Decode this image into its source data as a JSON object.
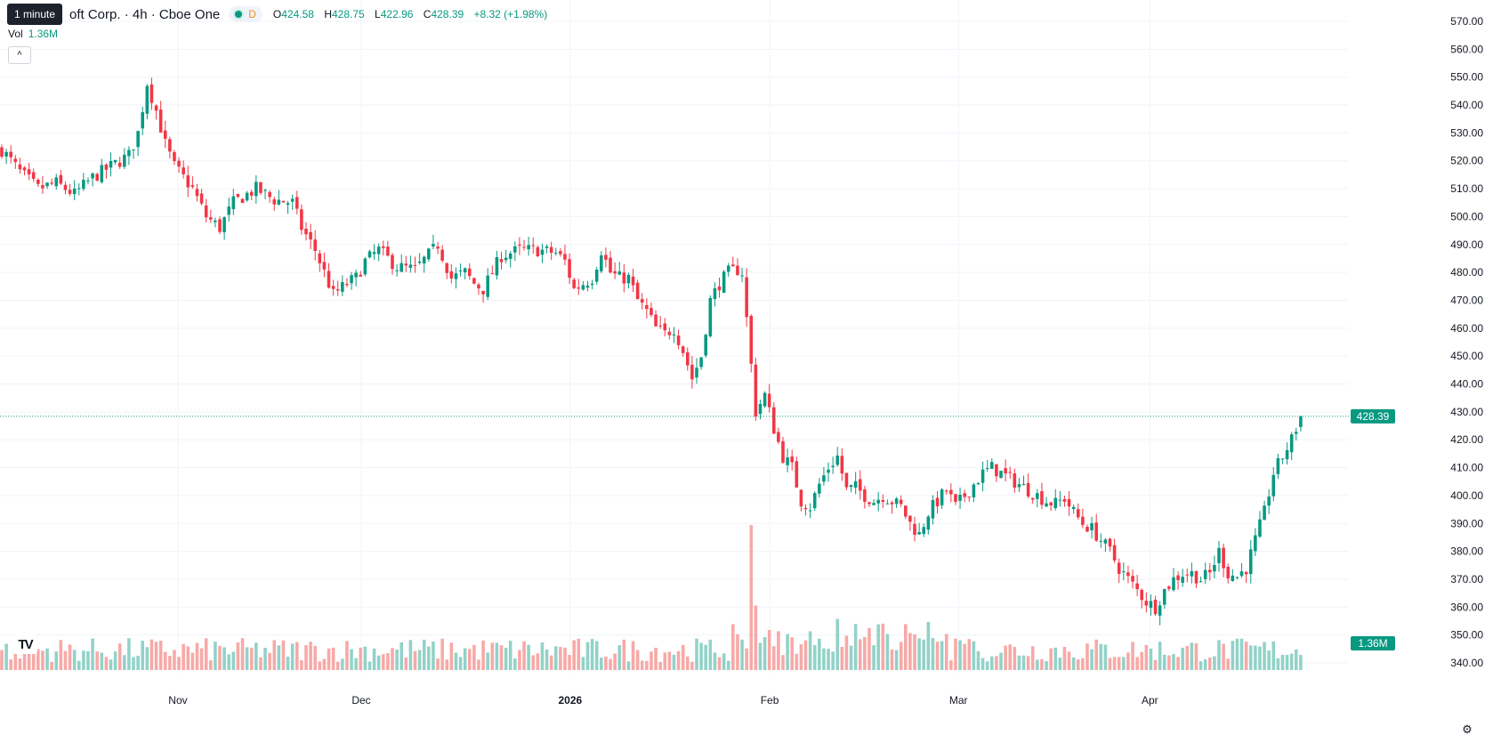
{
  "tooltip": "1 minute",
  "header": {
    "symbol": "oft Corp. · 4h · Cboe One",
    "interval_badge": "D",
    "ohlc": {
      "o_label": "O",
      "o": "424.58",
      "h_label": "H",
      "h": "428.75",
      "l_label": "L",
      "l": "422.96",
      "c_label": "C",
      "c": "428.39",
      "change": "+8.32 (+1.98%)"
    }
  },
  "volume": {
    "label": "Vol",
    "value": "1.36M"
  },
  "collapse_glyph": "^",
  "logo_text": "TV",
  "settings_icon": "⚙",
  "colors": {
    "up": "#089981",
    "down": "#f23645",
    "up_vol": "#92d2c8",
    "down_vol": "#f7a9a7",
    "grid": "#f0f3fa",
    "price_line": "#089981"
  },
  "chart_data": {
    "type": "candlestick",
    "title": "",
    "last_price": "428.39",
    "last_volume": "1.36M",
    "y_ticks": [
      "570.00",
      "560.00",
      "550.00",
      "540.00",
      "530.00",
      "520.00",
      "510.00",
      "500.00",
      "490.00",
      "480.00",
      "470.00",
      "460.00",
      "450.00",
      "440.00",
      "430.00",
      "420.00",
      "410.00",
      "400.00",
      "390.00",
      "380.00",
      "370.00",
      "360.00",
      "350.00",
      "340.00"
    ],
    "ylim": [
      336,
      574
    ],
    "x_labels": [
      {
        "label": "Nov",
        "pos": 0.132
      },
      {
        "label": "Dec",
        "pos": 0.268
      },
      {
        "label": "2026",
        "pos": 0.423
      },
      {
        "label": "Feb",
        "pos": 0.571
      },
      {
        "label": "Mar",
        "pos": 0.711
      },
      {
        "label": "Apr",
        "pos": 0.853
      }
    ],
    "anchors": [
      [
        0,
        524
      ],
      [
        4,
        516
      ],
      [
        8,
        510
      ],
      [
        12,
        512
      ],
      [
        16,
        508
      ],
      [
        20,
        514
      ],
      [
        24,
        518
      ],
      [
        28,
        522
      ],
      [
        30,
        530
      ],
      [
        32,
        548
      ],
      [
        34,
        538
      ],
      [
        36,
        526
      ],
      [
        38,
        518
      ],
      [
        42,
        510
      ],
      [
        45,
        500
      ],
      [
        48,
        496
      ],
      [
        51,
        505
      ],
      [
        56,
        510
      ],
      [
        60,
        506
      ],
      [
        64,
        505
      ],
      [
        66,
        496
      ],
      [
        69,
        488
      ],
      [
        73,
        472
      ],
      [
        76,
        476
      ],
      [
        78,
        478
      ],
      [
        80,
        484
      ],
      [
        83,
        488
      ],
      [
        87,
        482
      ],
      [
        91,
        481
      ],
      [
        95,
        488
      ],
      [
        96,
        490
      ],
      [
        99,
        478
      ],
      [
        102,
        480
      ],
      [
        104,
        476
      ],
      [
        106,
        474
      ],
      [
        108,
        480
      ],
      [
        110,
        486
      ],
      [
        114,
        488
      ],
      [
        118,
        488
      ],
      [
        122,
        487
      ],
      [
        124,
        484
      ],
      [
        126,
        474
      ],
      [
        128,
        476
      ],
      [
        130,
        478
      ],
      [
        132,
        488
      ],
      [
        134,
        480
      ],
      [
        136,
        478
      ],
      [
        138,
        478
      ],
      [
        140,
        470
      ],
      [
        142,
        466
      ],
      [
        144,
        460
      ],
      [
        146,
        458
      ],
      [
        148,
        460
      ],
      [
        150,
        452
      ],
      [
        152,
        442
      ],
      [
        154,
        450
      ],
      [
        156,
        470
      ],
      [
        158,
        476
      ],
      [
        160,
        480
      ],
      [
        162,
        481
      ],
      [
        163,
        480
      ],
      [
        166,
        430
      ],
      [
        168,
        436
      ],
      [
        170,
        424
      ],
      [
        172,
        414
      ],
      [
        174,
        410
      ],
      [
        176,
        398
      ],
      [
        178,
        396
      ],
      [
        180,
        404
      ],
      [
        182,
        410
      ],
      [
        184,
        414
      ],
      [
        186,
        402
      ],
      [
        188,
        403
      ],
      [
        190,
        400
      ],
      [
        192,
        398
      ],
      [
        194,
        400
      ],
      [
        196,
        398
      ],
      [
        198,
        396
      ],
      [
        200,
        390
      ],
      [
        202,
        386
      ],
      [
        204,
        394
      ],
      [
        206,
        398
      ],
      [
        208,
        402
      ],
      [
        210,
        396
      ],
      [
        212,
        400
      ],
      [
        214,
        404
      ],
      [
        216,
        408
      ],
      [
        218,
        410
      ],
      [
        220,
        408
      ],
      [
        222,
        406
      ],
      [
        224,
        404
      ],
      [
        226,
        402
      ],
      [
        228,
        400
      ],
      [
        230,
        398
      ],
      [
        232,
        397
      ],
      [
        234,
        399
      ],
      [
        236,
        394
      ],
      [
        238,
        390
      ],
      [
        240,
        388
      ],
      [
        242,
        384
      ],
      [
        244,
        380
      ],
      [
        246,
        374
      ],
      [
        248,
        370
      ],
      [
        250,
        366
      ],
      [
        252,
        362
      ],
      [
        254,
        360
      ],
      [
        256,
        366
      ],
      [
        258,
        370
      ],
      [
        260,
        372
      ],
      [
        262,
        372
      ],
      [
        264,
        370
      ],
      [
        266,
        372
      ],
      [
        268,
        380
      ],
      [
        270,
        372
      ],
      [
        272,
        371
      ],
      [
        274,
        374
      ],
      [
        276,
        384
      ],
      [
        278,
        394
      ],
      [
        280,
        408
      ],
      [
        282,
        414
      ],
      [
        284,
        420
      ],
      [
        286,
        428
      ]
    ],
    "n_bars": 287,
    "volume_spike": {
      "index": 165,
      "value": 3.6
    },
    "volume_range": [
      0,
      4.2
    ]
  }
}
